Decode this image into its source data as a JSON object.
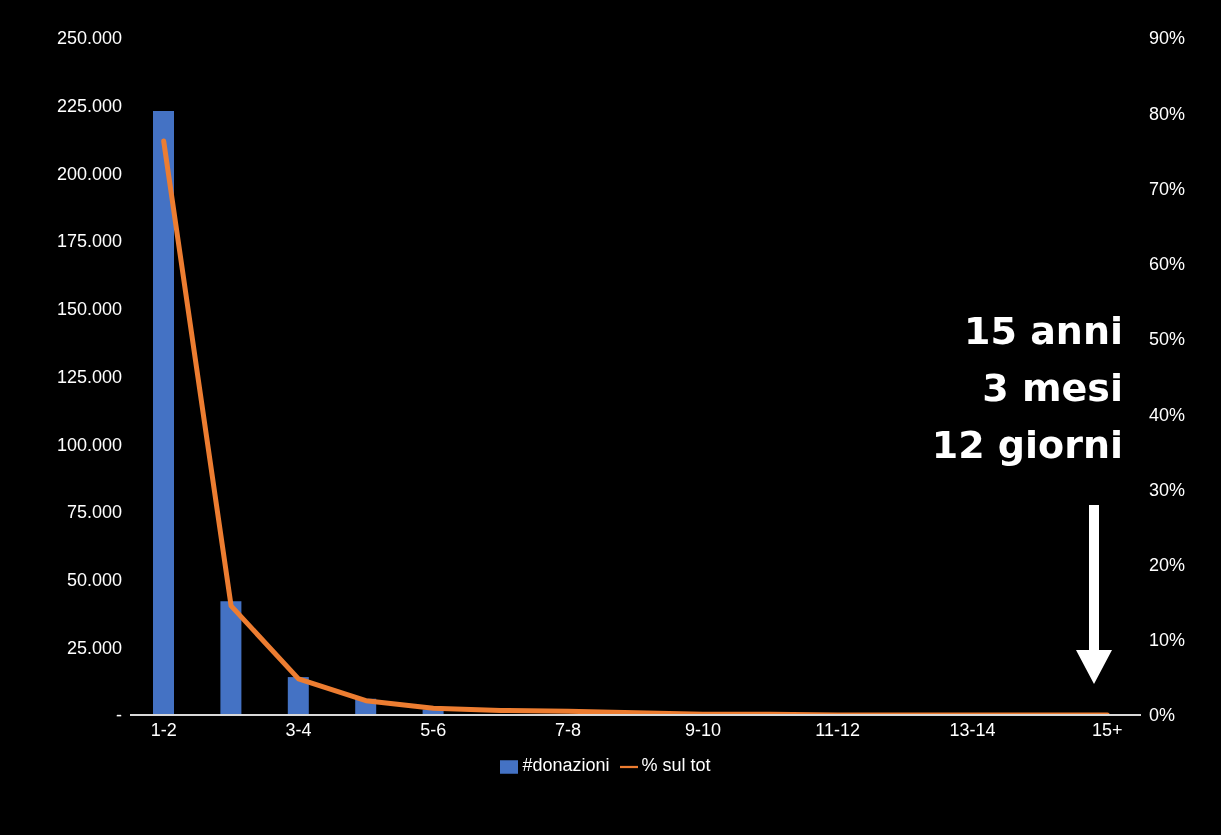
{
  "chart_data": {
    "type": "bar",
    "categories": [
      "1-2",
      null,
      "3-4",
      null,
      "5-6",
      null,
      "7-8",
      null,
      "9-10",
      null,
      "11-12",
      null,
      "13-14",
      null,
      "15+"
    ],
    "series": [
      {
        "name": "#donazioni",
        "color": "#4472c4",
        "values": [
          223000,
          42000,
          14000,
          6000,
          2000,
          null,
          null,
          null,
          null,
          null,
          null,
          null,
          null,
          null,
          null
        ]
      },
      {
        "name": "% sul tot",
        "type": "line",
        "axis": "y2",
        "color": "#ed7d31",
        "values": [
          76.3,
          14.5,
          4.8,
          1.9,
          0.9,
          0.6,
          0.5,
          0.3,
          0.1,
          0.1,
          0,
          0,
          0,
          0,
          0
        ]
      }
    ],
    "ylim": [
      0,
      250000
    ],
    "yticks": [
      {
        "value": 0,
        "label": "-"
      },
      {
        "value": 25000,
        "label": "25.000"
      },
      {
        "value": 50000,
        "label": "50.000"
      },
      {
        "value": 75000,
        "label": "75.000"
      },
      {
        "value": 100000,
        "label": "100.000"
      },
      {
        "value": 125000,
        "label": "125.000"
      },
      {
        "value": 150000,
        "label": "150.000"
      },
      {
        "value": 175000,
        "label": "175.000"
      },
      {
        "value": 200000,
        "label": "200.000"
      },
      {
        "value": 225000,
        "label": "225.000"
      },
      {
        "value": 250000,
        "label": "250.000"
      }
    ],
    "y2lim": [
      0,
      90
    ],
    "y2ticks": [
      {
        "value": 0,
        "label": "0%"
      },
      {
        "value": 10,
        "label": "10%"
      },
      {
        "value": 20,
        "label": "20%"
      },
      {
        "value": 30,
        "label": "30%"
      },
      {
        "value": 40,
        "label": "40%"
      },
      {
        "value": 50,
        "label": "50%"
      },
      {
        "value": 60,
        "label": "60%"
      },
      {
        "value": 70,
        "label": "70%"
      },
      {
        "value": 80,
        "label": "80%"
      },
      {
        "value": 90,
        "label": "90%"
      }
    ],
    "annotations": [
      "15 anni",
      "3 mesi",
      "12 giorni"
    ],
    "legend": "bottom",
    "marker": "none"
  }
}
